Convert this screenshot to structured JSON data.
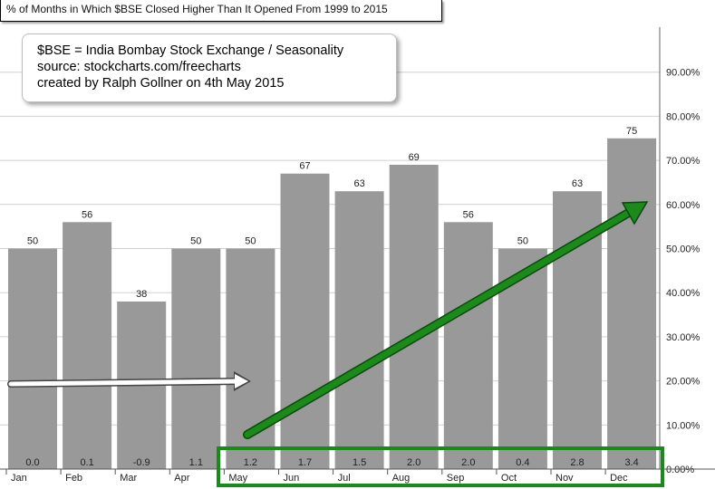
{
  "title": "% of Months in Which $BSE Closed Higher Than It Opened From 1999 to 2015",
  "note": {
    "lines": [
      "$BSE = India Bombay Stock Exchange / Seasonality",
      "source: stockcharts.com/freecharts",
      "created by Ralph Gollner on 4th May 2015"
    ]
  },
  "colors": {
    "bar": "#999999",
    "grid": "#d0d0d0",
    "annotation_green": "#1a8a1a",
    "annotation_white": "#ffffff"
  },
  "chart_data": {
    "type": "bar",
    "title": "% of Months in Which $BSE Closed Higher Than It Opened From 1999 to 2015",
    "categories": [
      "Jan",
      "Feb",
      "Mar",
      "Apr",
      "May",
      "Jun",
      "Jul",
      "Aug",
      "Sep",
      "Oct",
      "Nov",
      "Dec"
    ],
    "values": [
      50,
      56,
      38,
      50,
      50,
      67,
      63,
      69,
      56,
      50,
      63,
      75
    ],
    "value_labels": [
      "50",
      "56",
      "38",
      "50",
      "50",
      "67",
      "63",
      "69",
      "56",
      "50",
      "63",
      "75"
    ],
    "bottom_labels": [
      "0.0",
      "0.1",
      "-0.9",
      "1.1",
      "1.2",
      "1.7",
      "1.5",
      "2.0",
      "2.0",
      "0.4",
      "2.8",
      "3.4"
    ],
    "ylim": [
      0,
      100
    ],
    "yticks": [
      0,
      10,
      20,
      30,
      40,
      50,
      60,
      70,
      80,
      90
    ],
    "ytick_labels": [
      "0.00%",
      "10.00%",
      "20.00%",
      "30.00%",
      "40.00%",
      "50.00%",
      "60.00%",
      "70.00%",
      "80.00%",
      "90.00%"
    ],
    "y_axis_side": "right",
    "grid": true
  }
}
